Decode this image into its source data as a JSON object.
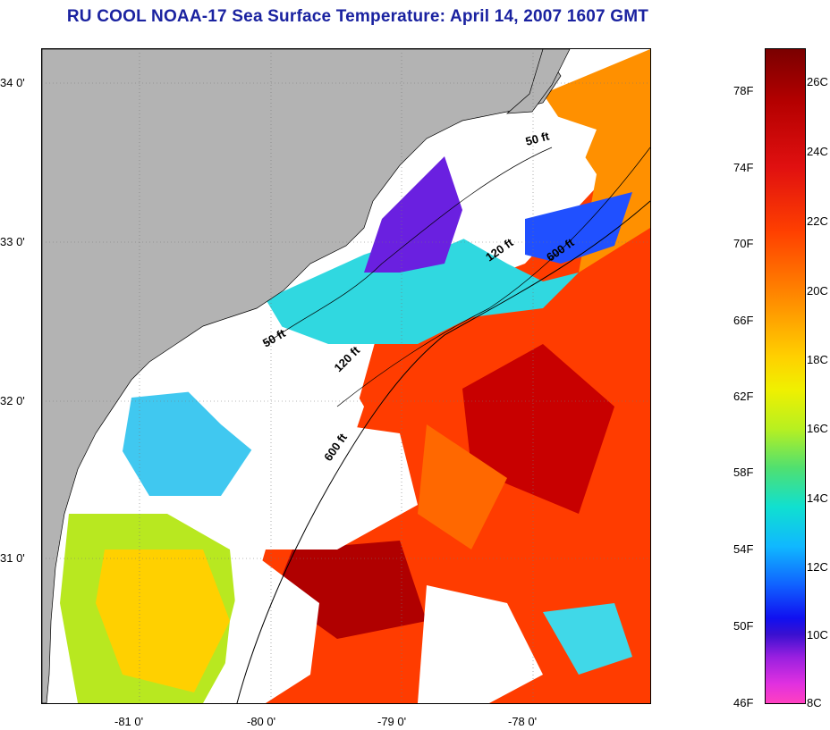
{
  "title": "RU COOL  NOAA-17  Sea Surface Temperature:  April 14, 2007 1607 GMT",
  "axes": {
    "x_ticks": [
      "-81 0'",
      "-80 0'",
      "-79 0'",
      "-78 0'"
    ],
    "y_ticks": [
      "34 0'",
      "33 0'",
      "32 0'",
      "31 0'"
    ]
  },
  "contours": {
    "labels": [
      "50 ft",
      "120 ft",
      "600 ft",
      "50 ft",
      "120 ft",
      "600 ft"
    ]
  },
  "colorbar": {
    "fahrenheit": [
      "78F",
      "74F",
      "70F",
      "66F",
      "62F",
      "58F",
      "54F",
      "50F",
      "46F"
    ],
    "celsius": [
      "26C",
      "24C",
      "22C",
      "20C",
      "18C",
      "16C",
      "14C",
      "12C",
      "10C",
      "8C"
    ]
  },
  "colors": {
    "land": "#b3b3b3",
    "cloud": "#ffffff",
    "title": "#1a22a0"
  }
}
